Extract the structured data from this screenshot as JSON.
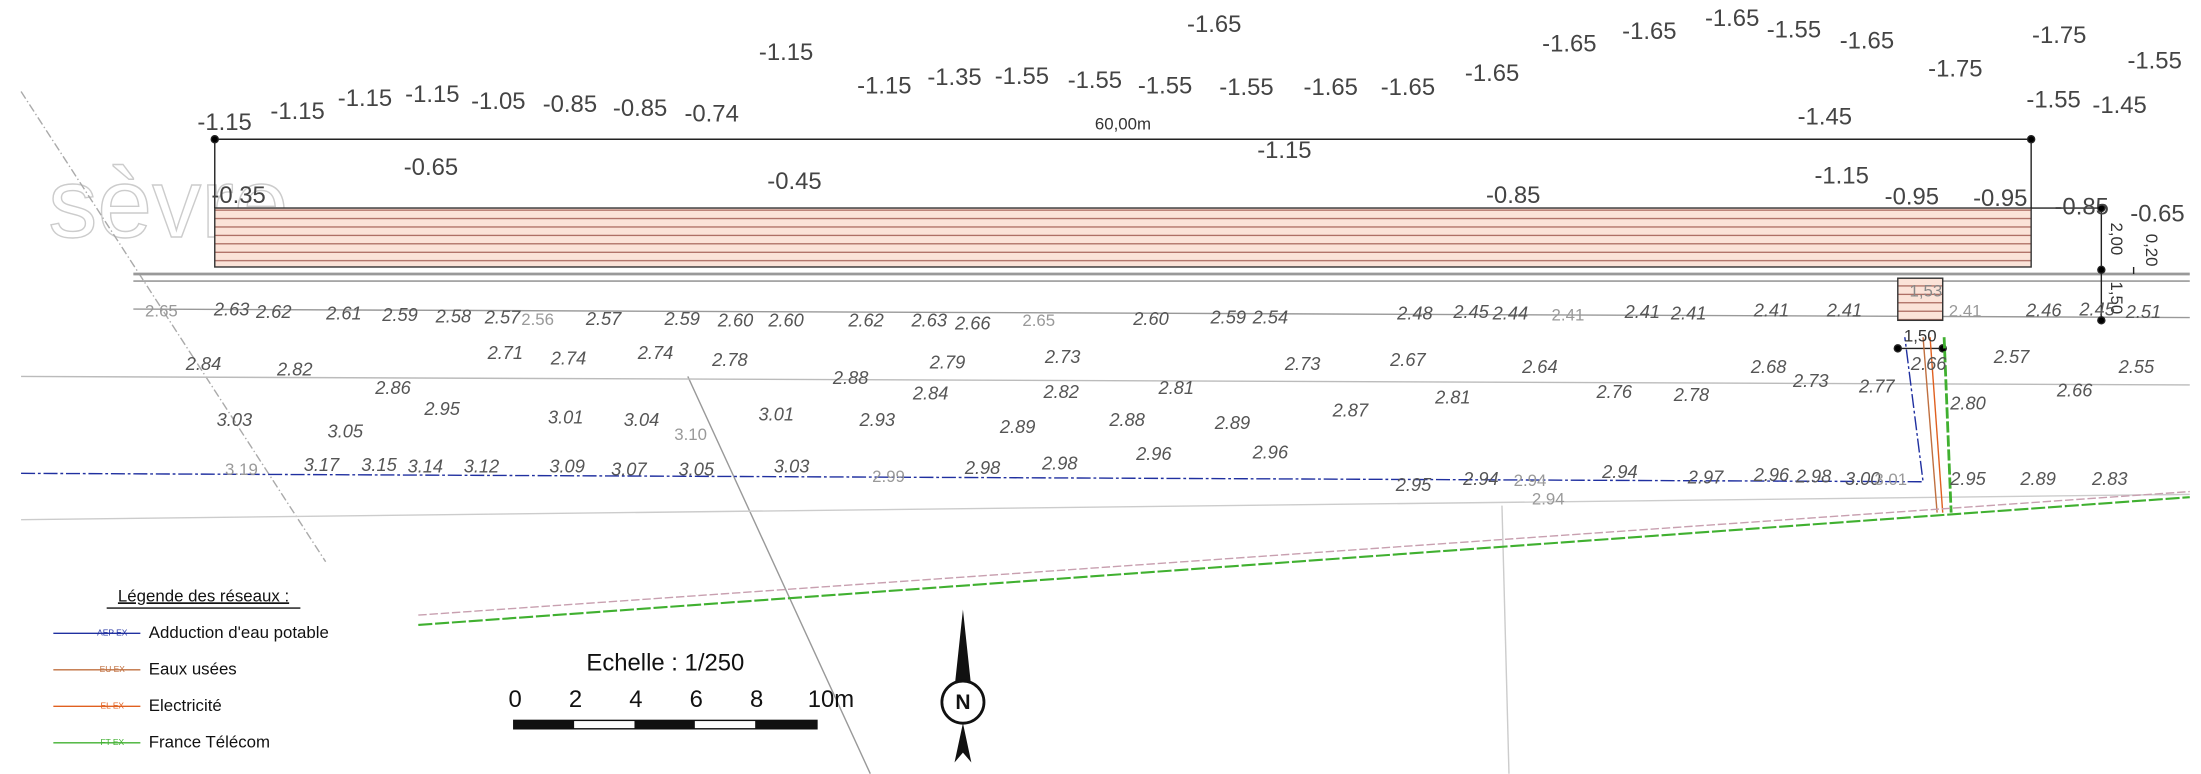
{
  "street": "sèvre",
  "dimensions": {
    "length": "60,00m",
    "width": "2,00",
    "offset": "0,20",
    "box_depth": "1,53",
    "box_width": "1,50",
    "box_height": "1,50"
  },
  "elevations": [
    "-1.65",
    "-1.15",
    "-1.65",
    "-1.65",
    "-1.65",
    "-1.55",
    "-1.65",
    "-1.75",
    "-1.55",
    "-1.15",
    "-1.35",
    "-1.55",
    "-1.55",
    "-1.55",
    "-1.55",
    "-1.65",
    "-1.65",
    "-1.65",
    "-1.75",
    "-1.15",
    "-1.15",
    "-1.15",
    "-1.15",
    "-1.05",
    "-0.85",
    "-0.85",
    "-0.74",
    "-1.55",
    "-1.45",
    "-1.45",
    "-1.15",
    "-0.65",
    "-0.45",
    "-1.15",
    "-0.85",
    "-0.95",
    "-0.95",
    "-0.85",
    "-0.65",
    "-0.35",
    "2.65",
    "2.63",
    "2.62",
    "2.61",
    "2.59",
    "2.58",
    "2.57",
    "2.56",
    "2.57",
    "2.59",
    "2.60",
    "2.60",
    "2.62",
    "2.63",
    "2.66",
    "2.65",
    "2.60",
    "2.59",
    "2.54",
    "2.48",
    "2.45",
    "2.44",
    "2.41",
    "2.41",
    "2.41",
    "2.41",
    "2.41",
    "2.41",
    "2.46",
    "2.45",
    "2.51",
    "2.84",
    "2.82",
    "2.71",
    "2.74",
    "2.74",
    "2.78",
    "2.79",
    "2.73",
    "2.67",
    "2.64",
    "2.57",
    "2.55",
    "2.86",
    "2.95",
    "2.88",
    "2.84",
    "2.82",
    "2.81",
    "2.73",
    "2.81",
    "2.68",
    "2.73",
    "2.77",
    "2.66",
    "2.76",
    "2.78",
    "2.80",
    "2.66",
    "3.03",
    "3.05",
    "3.01",
    "3.04",
    "3.10",
    "3.01",
    "2.93",
    "2.89",
    "2.88",
    "2.89",
    "2.87",
    "2.96",
    "2.96",
    "2.95",
    "2.94",
    "2.94",
    "2.94",
    "2.94",
    "2.97",
    "2.96",
    "2.98",
    "3.00",
    "3.01",
    "2.95",
    "2.89",
    "2.83",
    "3.19",
    "3.17",
    "3.15",
    "3.14",
    "3.12",
    "3.09",
    "3.07",
    "3.05",
    "3.03",
    "2.99",
    "2.98",
    "2.98"
  ],
  "legend": {
    "title": "Légende des réseaux :",
    "items": [
      {
        "code": "AEP EX",
        "name": "Adduction d'eau potable"
      },
      {
        "code": "EU EX",
        "name": "Eaux usées"
      },
      {
        "code": "EL EX",
        "name": "Electricité"
      },
      {
        "code": "FT EX",
        "name": "France Télécom"
      }
    ]
  },
  "scale": {
    "title": "Echelle : 1/250",
    "ticks": [
      "0",
      "2",
      "4",
      "6",
      "8",
      "10m"
    ]
  },
  "north": "N"
}
